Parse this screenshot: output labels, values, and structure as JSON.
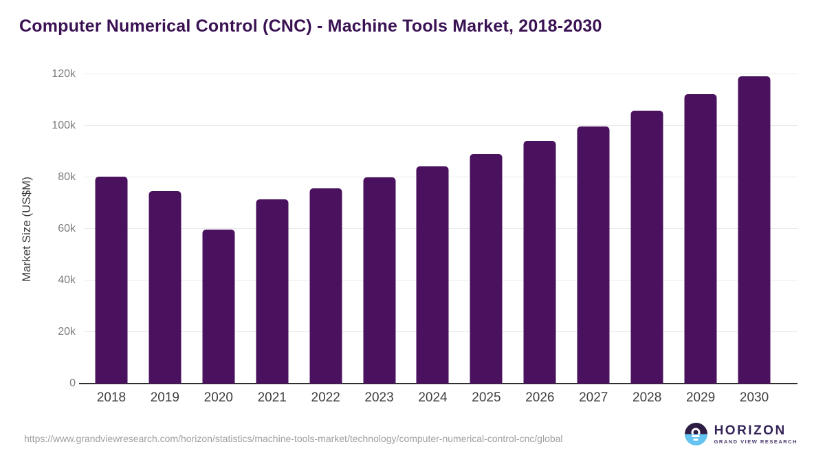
{
  "title": "Computer Numerical Control (CNC) - Machine Tools Market, 2018-2030",
  "chart_data": {
    "type": "bar",
    "title": "Computer Numerical Control (CNC) - Machine Tools Market, 2018-2030",
    "categories": [
      "2018",
      "2019",
      "2020",
      "2021",
      "2022",
      "2023",
      "2024",
      "2025",
      "2026",
      "2027",
      "2028",
      "2029",
      "2030"
    ],
    "values": [
      80200,
      74800,
      59800,
      71600,
      75700,
      79900,
      84400,
      89100,
      94100,
      99700,
      106000,
      112300,
      119200
    ],
    "unit": "US$M",
    "xlabel": "",
    "ylabel": "Market Size (US$M)",
    "ylim": [
      0,
      120000
    ],
    "y_tick_labels": [
      "0",
      "20k",
      "40k",
      "60k",
      "80k",
      "100k",
      "120k"
    ],
    "grid": "horizontal",
    "legend": "none",
    "bar_color": "#4a115e"
  },
  "colors": {
    "title_text": "#3a1153",
    "bar": "#4a115e",
    "axis_line": "#2f2f2f",
    "gridline": "#e9e9e9",
    "y_tick_text": "#7d7d7d",
    "x_tick_text": "#3e3e3e",
    "url_text": "#9f9f9f",
    "logo_dark": "#2d1c44",
    "logo_blue": "#64c3f0"
  },
  "footer": {
    "source_url": "https://www.grandviewresearch.com/horizon/statistics/machine-tools-market/technology/computer-numerical-control-cnc/global",
    "logo": {
      "name": "HORIZON",
      "subtitle": "GRAND VIEW RESEARCH"
    }
  }
}
